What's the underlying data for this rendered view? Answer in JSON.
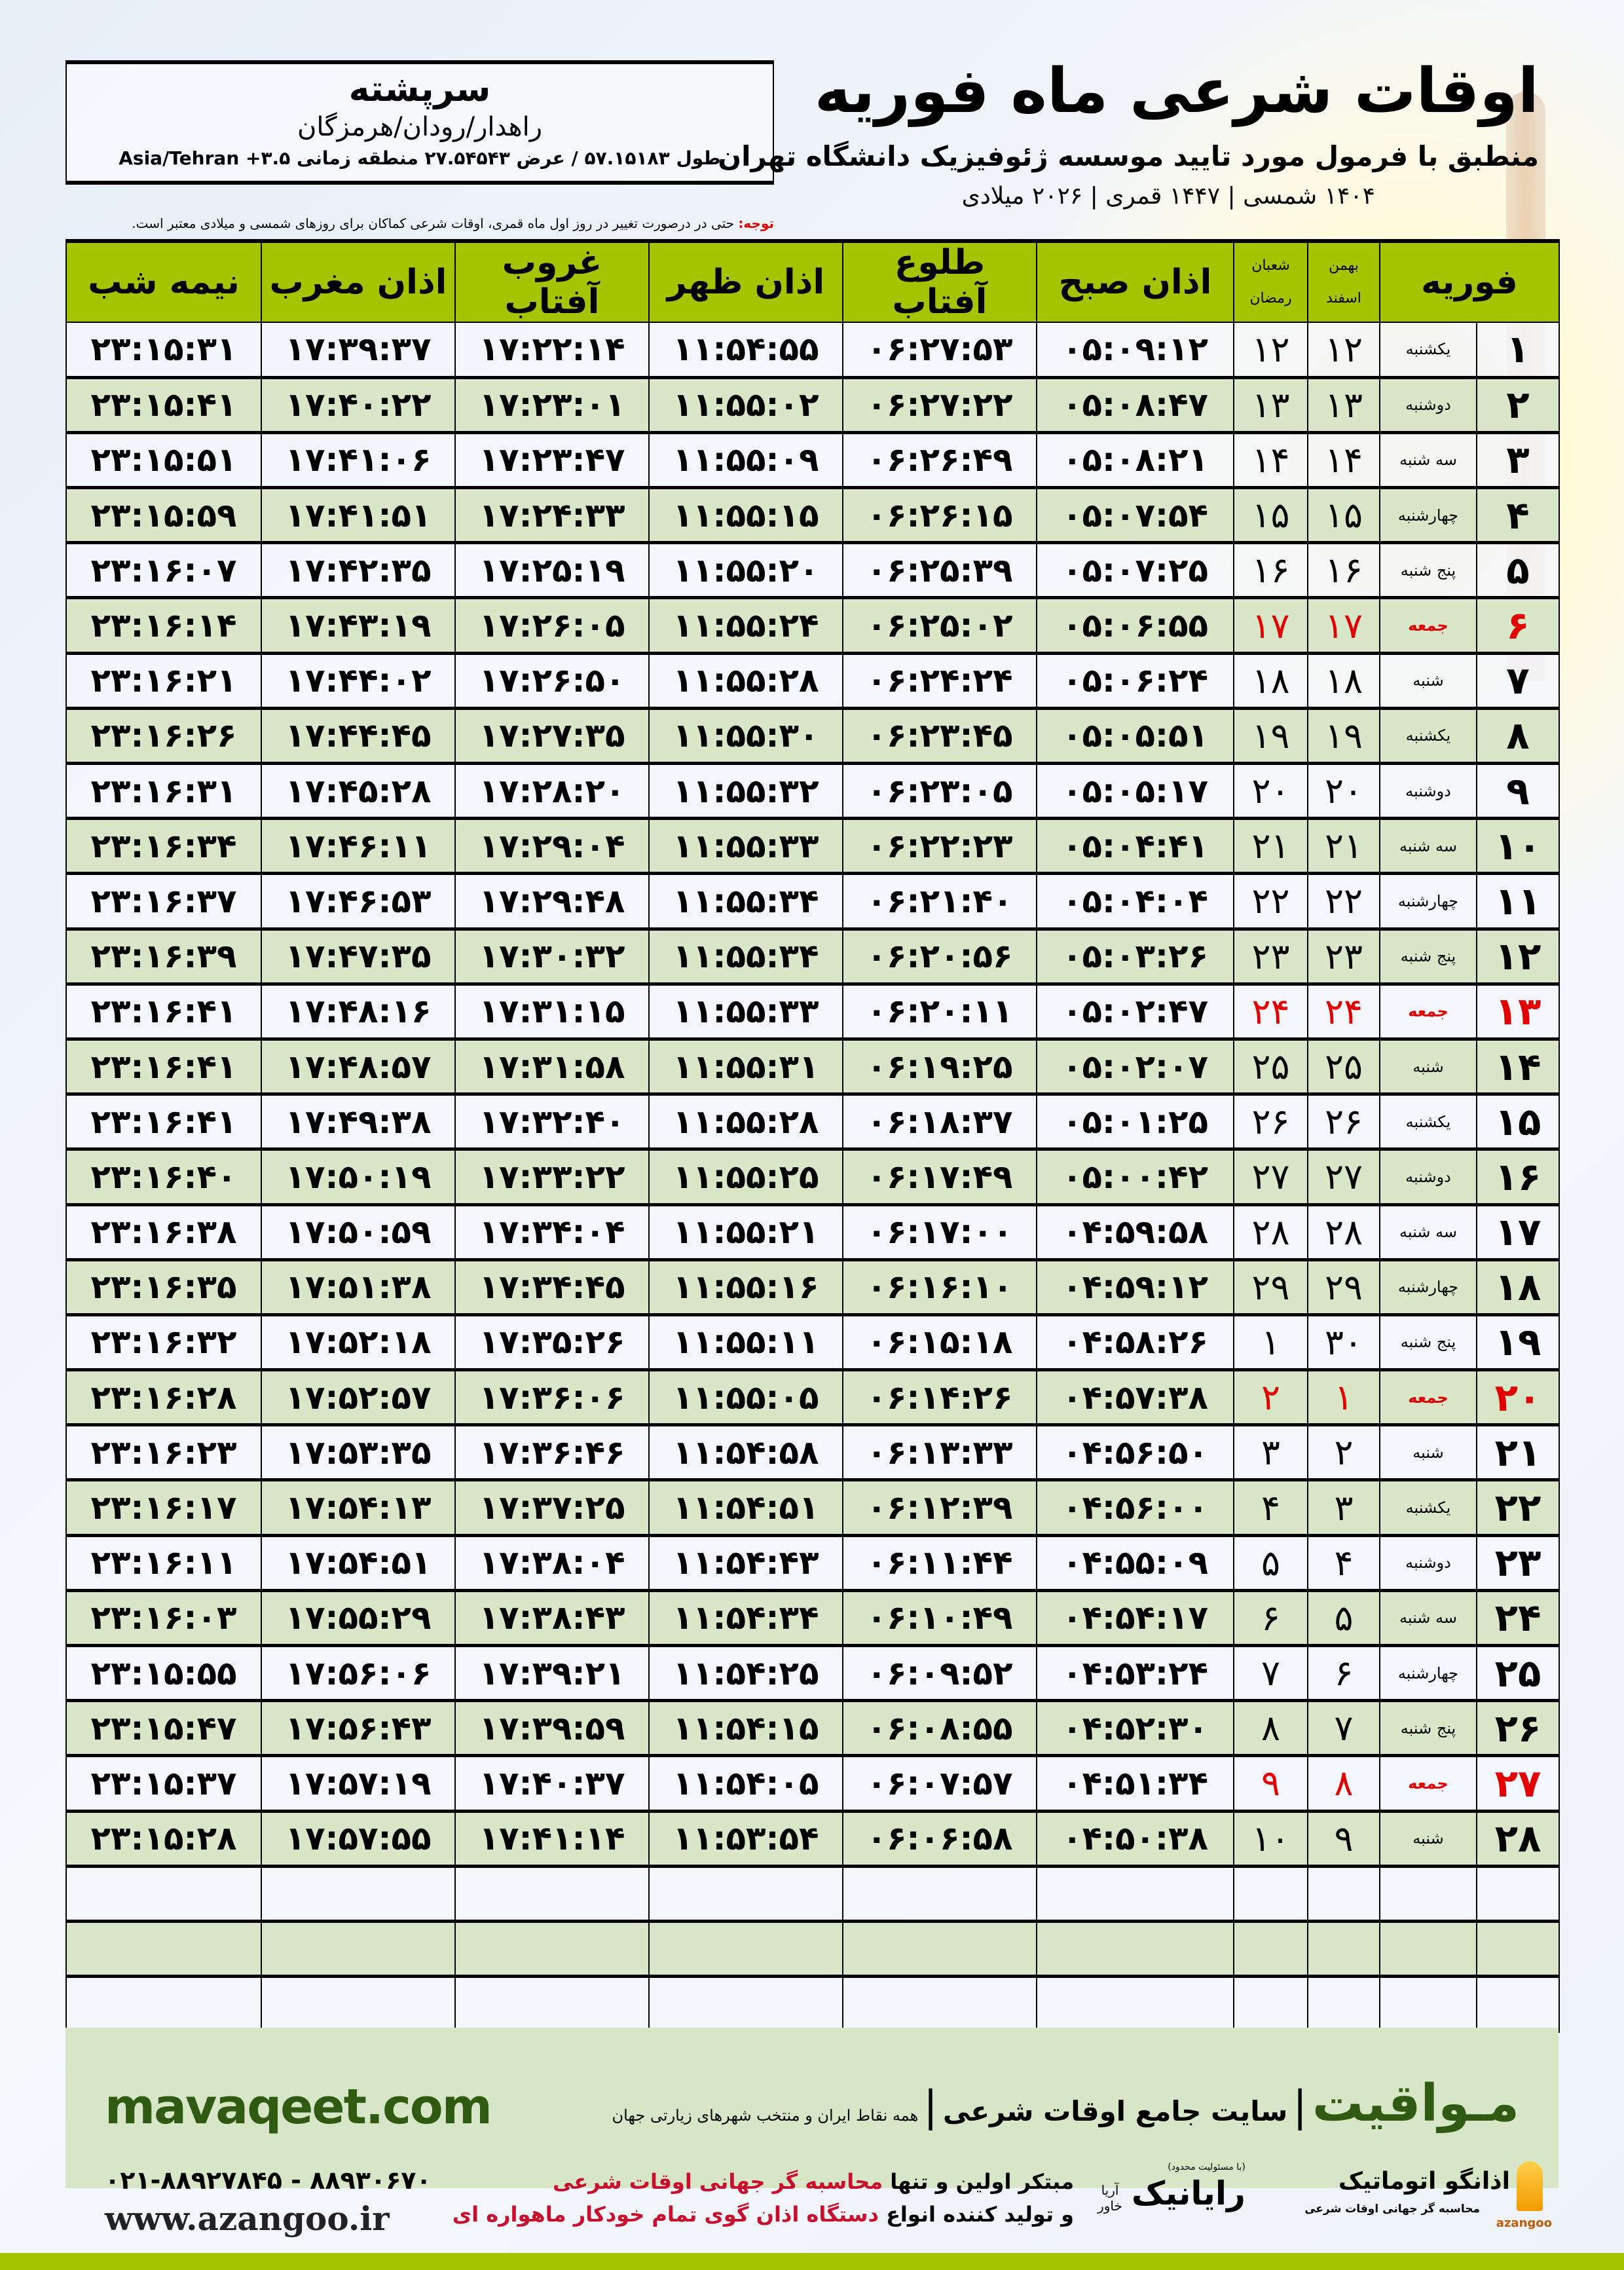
{
  "info": {
    "city": "سرپشته",
    "area": "راهدار/رودان/هرمزگان",
    "coords": "طول ۵۷.۱۵۱۸۳ / عرض ۲۷.۵۴۵۴۳ منطقه زمانی ۳.۵+ Asia/Tehran"
  },
  "header": {
    "title": "اوقات شرعی ماه فوریه",
    "subtitle": "منطبق با فرمول مورد تایید موسسه ژئوفیزیک دانشگاه تهران",
    "dates": "۱۴۰۴ شمسی | ۱۴۴۷ قمری | ۲۰۲۶ میلادی",
    "note_label": "توجه:",
    "note_text": " حتی در درصورت تغییر در روز اول ماه قمری، اوقات شرعی کماکان برای روزهای شمسی و میلادی معتبر است."
  },
  "columns": {
    "midnight": "نیمه شب",
    "maghrib": "اذان مغرب",
    "sunset": "غروب آفتاب",
    "dhuhr": "اذان ظهر",
    "sunrise": "طلوع آفتاب",
    "fajr": "اذان صبح",
    "hijri_top": "شعبان",
    "hijri_bottom": "رمضان",
    "shamsi_top": "بهمن",
    "shamsi_bottom": "اسفند",
    "month": "فوریه"
  },
  "accent_colors": {
    "header": "#a5c400",
    "friday": "#e00000",
    "brand": "#2f5a12"
  },
  "rows": [
    {
      "date": "۱",
      "day": "یکشنبه",
      "shamsi": "۱۲",
      "hijri": "۱۲",
      "fajr": "۰۵:۰۹:۱۲",
      "sunrise": "۰۶:۲۷:۵۳",
      "dhuhr": "۱۱:۵۴:۵۵",
      "sunset": "۱۷:۲۲:۱۴",
      "maghrib": "۱۷:۳۹:۳۷",
      "midnight": "۲۳:۱۵:۳۱"
    },
    {
      "date": "۲",
      "day": "دوشنبه",
      "shamsi": "۱۳",
      "hijri": "۱۳",
      "fajr": "۰۵:۰۸:۴۷",
      "sunrise": "۰۶:۲۷:۲۲",
      "dhuhr": "۱۱:۵۵:۰۲",
      "sunset": "۱۷:۲۳:۰۱",
      "maghrib": "۱۷:۴۰:۲۲",
      "midnight": "۲۳:۱۵:۴۱"
    },
    {
      "date": "۳",
      "day": "سه شنبه",
      "shamsi": "۱۴",
      "hijri": "۱۴",
      "fajr": "۰۵:۰۸:۲۱",
      "sunrise": "۰۶:۲۶:۴۹",
      "dhuhr": "۱۱:۵۵:۰۹",
      "sunset": "۱۷:۲۳:۴۷",
      "maghrib": "۱۷:۴۱:۰۶",
      "midnight": "۲۳:۱۵:۵۱"
    },
    {
      "date": "۴",
      "day": "چهارشنبه",
      "shamsi": "۱۵",
      "hijri": "۱۵",
      "fajr": "۰۵:۰۷:۵۴",
      "sunrise": "۰۶:۲۶:۱۵",
      "dhuhr": "۱۱:۵۵:۱۵",
      "sunset": "۱۷:۲۴:۳۳",
      "maghrib": "۱۷:۴۱:۵۱",
      "midnight": "۲۳:۱۵:۵۹"
    },
    {
      "date": "۵",
      "day": "پنج شنبه",
      "shamsi": "۱۶",
      "hijri": "۱۶",
      "fajr": "۰۵:۰۷:۲۵",
      "sunrise": "۰۶:۲۵:۳۹",
      "dhuhr": "۱۱:۵۵:۲۰",
      "sunset": "۱۷:۲۵:۱۹",
      "maghrib": "۱۷:۴۲:۳۵",
      "midnight": "۲۳:۱۶:۰۷"
    },
    {
      "date": "۶",
      "day": "جمعه",
      "shamsi": "۱۷",
      "hijri": "۱۷",
      "fajr": "۰۵:۰۶:۵۵",
      "sunrise": "۰۶:۲۵:۰۲",
      "dhuhr": "۱۱:۵۵:۲۴",
      "sunset": "۱۷:۲۶:۰۵",
      "maghrib": "۱۷:۴۳:۱۹",
      "midnight": "۲۳:۱۶:۱۴"
    },
    {
      "date": "۷",
      "day": "شنبه",
      "shamsi": "۱۸",
      "hijri": "۱۸",
      "fajr": "۰۵:۰۶:۲۴",
      "sunrise": "۰۶:۲۴:۲۴",
      "dhuhr": "۱۱:۵۵:۲۸",
      "sunset": "۱۷:۲۶:۵۰",
      "maghrib": "۱۷:۴۴:۰۲",
      "midnight": "۲۳:۱۶:۲۱"
    },
    {
      "date": "۸",
      "day": "یکشنبه",
      "shamsi": "۱۹",
      "hijri": "۱۹",
      "fajr": "۰۵:۰۵:۵۱",
      "sunrise": "۰۶:۲۳:۴۵",
      "dhuhr": "۱۱:۵۵:۳۰",
      "sunset": "۱۷:۲۷:۳۵",
      "maghrib": "۱۷:۴۴:۴۵",
      "midnight": "۲۳:۱۶:۲۶"
    },
    {
      "date": "۹",
      "day": "دوشنبه",
      "shamsi": "۲۰",
      "hijri": "۲۰",
      "fajr": "۰۵:۰۵:۱۷",
      "sunrise": "۰۶:۲۳:۰۵",
      "dhuhr": "۱۱:۵۵:۳۲",
      "sunset": "۱۷:۲۸:۲۰",
      "maghrib": "۱۷:۴۵:۲۸",
      "midnight": "۲۳:۱۶:۳۱"
    },
    {
      "date": "۱۰",
      "day": "سه شنبه",
      "shamsi": "۲۱",
      "hijri": "۲۱",
      "fajr": "۰۵:۰۴:۴۱",
      "sunrise": "۰۶:۲۲:۲۳",
      "dhuhr": "۱۱:۵۵:۳۳",
      "sunset": "۱۷:۲۹:۰۴",
      "maghrib": "۱۷:۴۶:۱۱",
      "midnight": "۲۳:۱۶:۳۴"
    },
    {
      "date": "۱۱",
      "day": "چهارشنبه",
      "shamsi": "۲۲",
      "hijri": "۲۲",
      "fajr": "۰۵:۰۴:۰۴",
      "sunrise": "۰۶:۲۱:۴۰",
      "dhuhr": "۱۱:۵۵:۳۴",
      "sunset": "۱۷:۲۹:۴۸",
      "maghrib": "۱۷:۴۶:۵۳",
      "midnight": "۲۳:۱۶:۳۷"
    },
    {
      "date": "۱۲",
      "day": "پنج شنبه",
      "shamsi": "۲۳",
      "hijri": "۲۳",
      "fajr": "۰۵:۰۳:۲۶",
      "sunrise": "۰۶:۲۰:۵۶",
      "dhuhr": "۱۱:۵۵:۳۴",
      "sunset": "۱۷:۳۰:۳۲",
      "maghrib": "۱۷:۴۷:۳۵",
      "midnight": "۲۳:۱۶:۳۹"
    },
    {
      "date": "۱۳",
      "day": "جمعه",
      "shamsi": "۲۴",
      "hijri": "۲۴",
      "fajr": "۰۵:۰۲:۴۷",
      "sunrise": "۰۶:۲۰:۱۱",
      "dhuhr": "۱۱:۵۵:۳۳",
      "sunset": "۱۷:۳۱:۱۵",
      "maghrib": "۱۷:۴۸:۱۶",
      "midnight": "۲۳:۱۶:۴۱"
    },
    {
      "date": "۱۴",
      "day": "شنبه",
      "shamsi": "۲۵",
      "hijri": "۲۵",
      "fajr": "۰۵:۰۲:۰۷",
      "sunrise": "۰۶:۱۹:۲۵",
      "dhuhr": "۱۱:۵۵:۳۱",
      "sunset": "۱۷:۳۱:۵۸",
      "maghrib": "۱۷:۴۸:۵۷",
      "midnight": "۲۳:۱۶:۴۱"
    },
    {
      "date": "۱۵",
      "day": "یکشنبه",
      "shamsi": "۲۶",
      "hijri": "۲۶",
      "fajr": "۰۵:۰۱:۲۵",
      "sunrise": "۰۶:۱۸:۳۷",
      "dhuhr": "۱۱:۵۵:۲۸",
      "sunset": "۱۷:۳۲:۴۰",
      "maghrib": "۱۷:۴۹:۳۸",
      "midnight": "۲۳:۱۶:۴۱"
    },
    {
      "date": "۱۶",
      "day": "دوشنبه",
      "shamsi": "۲۷",
      "hijri": "۲۷",
      "fajr": "۰۵:۰۰:۴۲",
      "sunrise": "۰۶:۱۷:۴۹",
      "dhuhr": "۱۱:۵۵:۲۵",
      "sunset": "۱۷:۳۳:۲۲",
      "maghrib": "۱۷:۵۰:۱۹",
      "midnight": "۲۳:۱۶:۴۰"
    },
    {
      "date": "۱۷",
      "day": "سه شنبه",
      "shamsi": "۲۸",
      "hijri": "۲۸",
      "fajr": "۰۴:۵۹:۵۸",
      "sunrise": "۰۶:۱۷:۰۰",
      "dhuhr": "۱۱:۵۵:۲۱",
      "sunset": "۱۷:۳۴:۰۴",
      "maghrib": "۱۷:۵۰:۵۹",
      "midnight": "۲۳:۱۶:۳۸"
    },
    {
      "date": "۱۸",
      "day": "چهارشنبه",
      "shamsi": "۲۹",
      "hijri": "۲۹",
      "fajr": "۰۴:۵۹:۱۲",
      "sunrise": "۰۶:۱۶:۱۰",
      "dhuhr": "۱۱:۵۵:۱۶",
      "sunset": "۱۷:۳۴:۴۵",
      "maghrib": "۱۷:۵۱:۳۸",
      "midnight": "۲۳:۱۶:۳۵"
    },
    {
      "date": "۱۹",
      "day": "پنج شنبه",
      "shamsi": "۳۰",
      "hijri": "۱",
      "fajr": "۰۴:۵۸:۲۶",
      "sunrise": "۰۶:۱۵:۱۸",
      "dhuhr": "۱۱:۵۵:۱۱",
      "sunset": "۱۷:۳۵:۲۶",
      "maghrib": "۱۷:۵۲:۱۸",
      "midnight": "۲۳:۱۶:۳۲"
    },
    {
      "date": "۲۰",
      "day": "جمعه",
      "shamsi": "۱",
      "hijri": "۲",
      "fajr": "۰۴:۵۷:۳۸",
      "sunrise": "۰۶:۱۴:۲۶",
      "dhuhr": "۱۱:۵۵:۰۵",
      "sunset": "۱۷:۳۶:۰۶",
      "maghrib": "۱۷:۵۲:۵۷",
      "midnight": "۲۳:۱۶:۲۸"
    },
    {
      "date": "۲۱",
      "day": "شنبه",
      "shamsi": "۲",
      "hijri": "۳",
      "fajr": "۰۴:۵۶:۵۰",
      "sunrise": "۰۶:۱۳:۳۳",
      "dhuhr": "۱۱:۵۴:۵۸",
      "sunset": "۱۷:۳۶:۴۶",
      "maghrib": "۱۷:۵۳:۳۵",
      "midnight": "۲۳:۱۶:۲۳"
    },
    {
      "date": "۲۲",
      "day": "یکشنبه",
      "shamsi": "۳",
      "hijri": "۴",
      "fajr": "۰۴:۵۶:۰۰",
      "sunrise": "۰۶:۱۲:۳۹",
      "dhuhr": "۱۱:۵۴:۵۱",
      "sunset": "۱۷:۳۷:۲۵",
      "maghrib": "۱۷:۵۴:۱۳",
      "midnight": "۲۳:۱۶:۱۷"
    },
    {
      "date": "۲۳",
      "day": "دوشنبه",
      "shamsi": "۴",
      "hijri": "۵",
      "fajr": "۰۴:۵۵:۰۹",
      "sunrise": "۰۶:۱۱:۴۴",
      "dhuhr": "۱۱:۵۴:۴۳",
      "sunset": "۱۷:۳۸:۰۴",
      "maghrib": "۱۷:۵۴:۵۱",
      "midnight": "۲۳:۱۶:۱۱"
    },
    {
      "date": "۲۴",
      "day": "سه شنبه",
      "shamsi": "۵",
      "hijri": "۶",
      "fajr": "۰۴:۵۴:۱۷",
      "sunrise": "۰۶:۱۰:۴۹",
      "dhuhr": "۱۱:۵۴:۳۴",
      "sunset": "۱۷:۳۸:۴۳",
      "maghrib": "۱۷:۵۵:۲۹",
      "midnight": "۲۳:۱۶:۰۳"
    },
    {
      "date": "۲۵",
      "day": "چهارشنبه",
      "shamsi": "۶",
      "hijri": "۷",
      "fajr": "۰۴:۵۳:۲۴",
      "sunrise": "۰۶:۰۹:۵۲",
      "dhuhr": "۱۱:۵۴:۲۵",
      "sunset": "۱۷:۳۹:۲۱",
      "maghrib": "۱۷:۵۶:۰۶",
      "midnight": "۲۳:۱۵:۵۵"
    },
    {
      "date": "۲۶",
      "day": "پنج شنبه",
      "shamsi": "۷",
      "hijri": "۸",
      "fajr": "۰۴:۵۲:۳۰",
      "sunrise": "۰۶:۰۸:۵۵",
      "dhuhr": "۱۱:۵۴:۱۵",
      "sunset": "۱۷:۳۹:۵۹",
      "maghrib": "۱۷:۵۶:۴۳",
      "midnight": "۲۳:۱۵:۴۷"
    },
    {
      "date": "۲۷",
      "day": "جمعه",
      "shamsi": "۸",
      "hijri": "۹",
      "fajr": "۰۴:۵۱:۳۴",
      "sunrise": "۰۶:۰۷:۵۷",
      "dhuhr": "۱۱:۵۴:۰۵",
      "sunset": "۱۷:۴۰:۳۷",
      "maghrib": "۱۷:۵۷:۱۹",
      "midnight": "۲۳:۱۵:۳۷"
    },
    {
      "date": "۲۸",
      "day": "شنبه",
      "shamsi": "۹",
      "hijri": "۱۰",
      "fajr": "۰۴:۵۰:۳۸",
      "sunrise": "۰۶:۰۶:۵۸",
      "dhuhr": "۱۱:۵۳:۵۴",
      "sunset": "۱۷:۴۱:۱۴",
      "maghrib": "۱۷:۵۷:۵۵",
      "midnight": "۲۳:۱۵:۲۸"
    }
  ],
  "footer": {
    "site": "mavaqeet.com",
    "brand": "مـواقیت",
    "brand_tagline": "سایت جامع اوقات شرعی",
    "brand_sub": "همه نقاط ایران و منتخب شهرهای زیارتی جهان",
    "phone": "۰۲۱-۸۸۹۲۷۸۴۵ - ۸۸۹۳۰۶۷۰",
    "www": "www.azangoo.ir",
    "promo_1a": "مبتکر اولین و تنها ",
    "promo_1b": "محاسبه گر جهانی اوقات شرعی",
    "promo_2a": "و تولید کننده انواع ",
    "promo_2b": "دستگاه اذان گوی تمام خودکار ماهواره ای",
    "rayanik_small": "(با مسئولیت محدود)",
    "rayanik": "رایانیک",
    "rayanik_side": "آریا خاور",
    "azangoo_name": "اذانگو اتوماتیک",
    "azangoo_sub": "محاسبه گر جهانی اوقات شرعی",
    "azangoo_en": "azangoo"
  }
}
